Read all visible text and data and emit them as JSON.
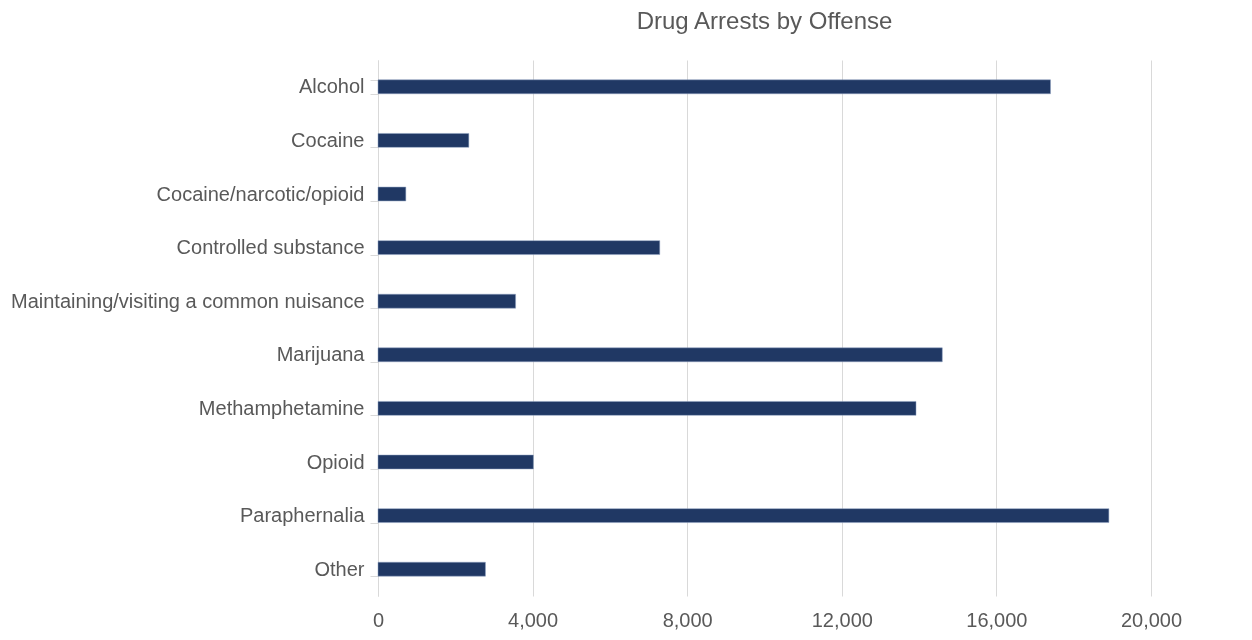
{
  "chart_data": {
    "type": "bar",
    "orientation": "horizontal",
    "title": "Drug Arrests by Offense",
    "categories": [
      "Alcohol",
      "Cocaine",
      "Cocaine/narcotic/opioid",
      "Controlled substance",
      "Maintaining/visiting a common nuisance",
      "Marijuana",
      "Methamphetamine",
      "Opioid",
      "Paraphernalia",
      "Other"
    ],
    "values": [
      17400,
      2350,
      720,
      7290,
      3560,
      14600,
      13920,
      4020,
      18910,
      2780
    ],
    "color": "#203864",
    "xlim": [
      0,
      20000
    ],
    "xticks": [
      {
        "value": 0,
        "label": "0"
      },
      {
        "value": 4000,
        "label": "4,000"
      },
      {
        "value": 8000,
        "label": "8,000"
      },
      {
        "value": 12000,
        "label": "12,000"
      },
      {
        "value": 16000,
        "label": "16,000"
      },
      {
        "value": 20000,
        "label": "20,000"
      }
    ],
    "grid": "x"
  }
}
